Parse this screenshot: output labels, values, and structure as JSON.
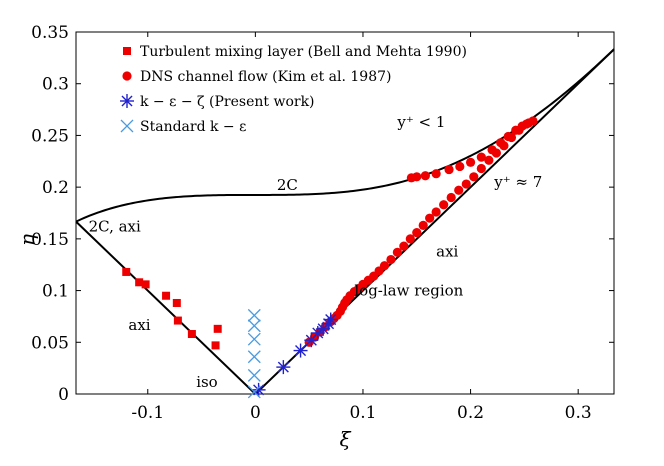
{
  "chart_data": {
    "type": "scatter",
    "xlabel": "ξ",
    "ylabel": "η",
    "xlim": [
      -0.1667,
      0.3333
    ],
    "ylim": [
      0,
      0.35
    ],
    "xticks": [
      -0.1,
      0,
      0.1,
      0.2,
      0.3
    ],
    "xtick_labels": [
      "-0.1",
      "0",
      "0.1",
      "0.2",
      "0.3"
    ],
    "yticks": [
      0,
      0.05,
      0.1,
      0.15,
      0.2,
      0.25,
      0.3,
      0.35
    ],
    "ytick_labels": [
      "0",
      "0.05",
      "0.1",
      "0.15",
      "0.2",
      "0.25",
      "0.3",
      "0.35"
    ],
    "grid": false,
    "legend_position": "top-left",
    "annotations": [
      {
        "text": "2C",
        "x": 0.02,
        "y": 0.197
      },
      {
        "text": "2C, axi",
        "x": -0.155,
        "y": 0.157
      },
      {
        "text": "axi",
        "x": -0.118,
        "y": 0.062
      },
      {
        "text": "iso",
        "x": -0.055,
        "y": 0.007
      },
      {
        "text": "log-law region",
        "x": 0.092,
        "y": 0.095
      },
      {
        "text": "axi",
        "x": 0.168,
        "y": 0.133
      },
      {
        "text": "y⁺ < 1",
        "x": 0.132,
        "y": 0.258
      },
      {
        "text": "y⁺ ≈ 7",
        "x": 0.222,
        "y": 0.2
      }
    ],
    "series": [
      {
        "name": "Turbulent mixing layer (Bell and Mehta 1990)",
        "marker": "square",
        "color": "#ee0000",
        "points": [
          [
            -0.12,
            0.118
          ],
          [
            -0.108,
            0.108
          ],
          [
            -0.102,
            0.106
          ],
          [
            -0.083,
            0.095
          ],
          [
            -0.073,
            0.088
          ],
          [
            -0.072,
            0.071
          ],
          [
            -0.059,
            0.058
          ],
          [
            -0.035,
            0.063
          ],
          [
            -0.037,
            0.047
          ]
        ]
      },
      {
        "name": "DNS channel flow (Kim et al. 1987)",
        "marker": "circle",
        "color": "#ee0000",
        "points": [
          [
            0.05,
            0.05
          ],
          [
            0.055,
            0.055
          ],
          [
            0.06,
            0.06
          ],
          [
            0.065,
            0.065
          ],
          [
            0.07,
            0.07
          ],
          [
            0.073,
            0.073
          ],
          [
            0.076,
            0.076
          ],
          [
            0.079,
            0.08
          ],
          [
            0.081,
            0.084
          ],
          [
            0.083,
            0.088
          ],
          [
            0.085,
            0.091
          ],
          [
            0.088,
            0.095
          ],
          [
            0.092,
            0.099
          ],
          [
            0.096,
            0.102
          ],
          [
            0.1,
            0.106
          ],
          [
            0.105,
            0.11
          ],
          [
            0.11,
            0.114
          ],
          [
            0.115,
            0.119
          ],
          [
            0.12,
            0.124
          ],
          [
            0.126,
            0.13
          ],
          [
            0.132,
            0.137
          ],
          [
            0.138,
            0.143
          ],
          [
            0.144,
            0.15
          ],
          [
            0.15,
            0.156
          ],
          [
            0.156,
            0.163
          ],
          [
            0.162,
            0.17
          ],
          [
            0.168,
            0.176
          ],
          [
            0.175,
            0.183
          ],
          [
            0.182,
            0.19
          ],
          [
            0.189,
            0.197
          ],
          [
            0.196,
            0.203
          ],
          [
            0.203,
            0.21
          ],
          [
            0.21,
            0.218
          ],
          [
            0.217,
            0.226
          ],
          [
            0.224,
            0.233
          ],
          [
            0.231,
            0.24
          ],
          [
            0.238,
            0.248
          ],
          [
            0.245,
            0.255
          ],
          [
            0.252,
            0.261
          ],
          [
            0.258,
            0.264
          ],
          [
            0.145,
            0.209
          ],
          [
            0.15,
            0.21
          ],
          [
            0.158,
            0.211
          ],
          [
            0.168,
            0.213
          ],
          [
            0.18,
            0.217
          ],
          [
            0.19,
            0.22
          ],
          [
            0.2,
            0.224
          ],
          [
            0.21,
            0.229
          ],
          [
            0.22,
            0.236
          ],
          [
            0.228,
            0.243
          ],
          [
            0.235,
            0.249
          ],
          [
            0.242,
            0.255
          ],
          [
            0.248,
            0.259
          ],
          [
            0.254,
            0.262
          ]
        ]
      },
      {
        "name": "k − ε − ζ (Present work)",
        "marker": "asterisk",
        "color": "#2222cc",
        "points": [
          [
            0.003,
            0.004
          ],
          [
            0.026,
            0.026
          ],
          [
            0.042,
            0.042
          ],
          [
            0.052,
            0.052
          ],
          [
            0.058,
            0.059
          ],
          [
            0.063,
            0.063
          ],
          [
            0.068,
            0.068
          ],
          [
            0.07,
            0.072
          ]
        ]
      },
      {
        "name": "Standard k − ε",
        "marker": "x",
        "color": "#4a9be0",
        "points": [
          [
            -0.001,
            0.002
          ],
          [
            -0.001,
            0.018
          ],
          [
            -0.001,
            0.036
          ],
          [
            -0.001,
            0.053
          ],
          [
            -0.001,
            0.066
          ],
          [
            -0.001,
            0.076
          ]
        ]
      }
    ],
    "curves": [
      {
        "name": "boundary",
        "color": "#000000"
      }
    ]
  }
}
